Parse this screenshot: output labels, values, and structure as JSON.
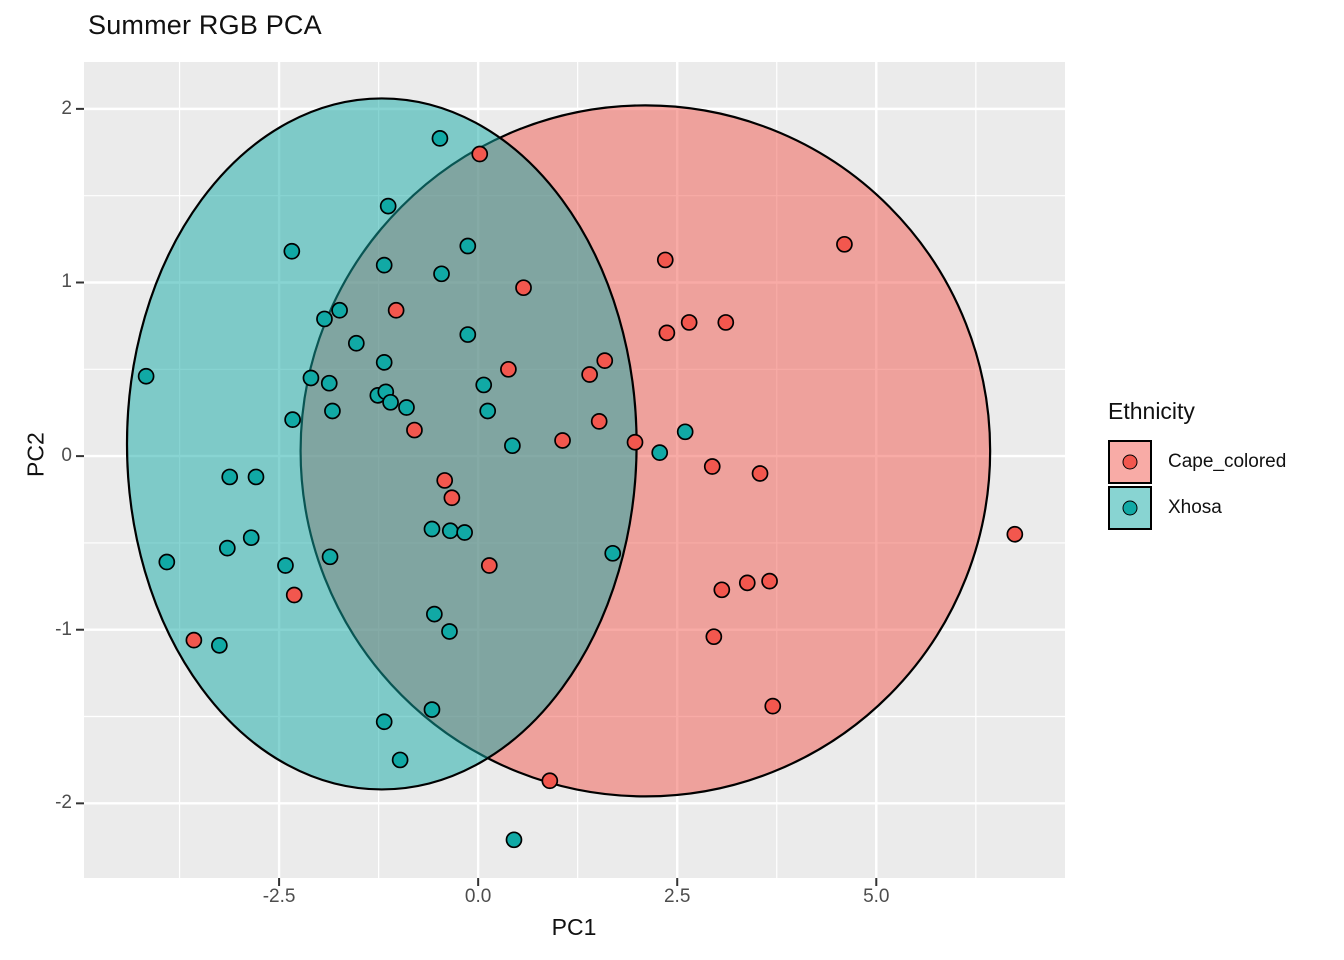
{
  "title": "Summer RGB PCA",
  "axes": {
    "x": {
      "label": "PC1",
      "ticks": [
        -2.5,
        0.0,
        2.5,
        5.0
      ],
      "tick_labels": [
        "-2.5",
        "0.0",
        "2.5",
        "5.0"
      ],
      "minor_ticks": [
        -3.75,
        -1.25,
        1.25,
        3.75,
        6.25
      ]
    },
    "y": {
      "label": "PC2",
      "ticks": [
        2,
        1,
        0,
        -1,
        -2
      ],
      "tick_labels": [
        "2",
        "1",
        "0",
        "-1",
        "-2"
      ],
      "minor_ticks": [
        1.5,
        0.5,
        -0.5,
        -1.5
      ]
    }
  },
  "legend": {
    "title": "Ethnicity",
    "entries": [
      {
        "label": "Cape_colored",
        "color": "#F2574E"
      },
      {
        "label": "Xhosa",
        "color": "#11A9A5"
      }
    ]
  },
  "colors": {
    "panel_background": "#EBEBEB",
    "gridline": "#FFFFFF",
    "point_outline": "#000000",
    "ellipse_outline": "#000000",
    "tick_mark": "#333333",
    "tick_text": "#4D4D4D",
    "text": "#111111"
  },
  "chart_data": {
    "type": "scatter",
    "title": "Summer RGB PCA",
    "xlabel": "PC1",
    "ylabel": "PC2",
    "x_range": [
      -4.95,
      7.37
    ],
    "y_range": [
      -2.43,
      2.27
    ],
    "grid": true,
    "legend_position": "right",
    "series": [
      {
        "name": "Cape_colored",
        "color": "#F2574E",
        "ellipse": {
          "cx": 2.1,
          "cy": 0.03,
          "rx": 4.33,
          "ry": 1.99,
          "fill_opacity": 0.5
        },
        "points": [
          [
            0.02,
            1.74
          ],
          [
            0.57,
            0.97
          ],
          [
            -1.03,
            0.84
          ],
          [
            0.38,
            0.5
          ],
          [
            -0.8,
            0.15
          ],
          [
            2.35,
            1.13
          ],
          [
            4.6,
            1.22
          ],
          [
            2.65,
            0.77
          ],
          [
            3.11,
            0.77
          ],
          [
            2.37,
            0.71
          ],
          [
            1.59,
            0.55
          ],
          [
            1.4,
            0.47
          ],
          [
            1.52,
            0.2
          ],
          [
            1.06,
            0.09
          ],
          [
            1.97,
            0.08
          ],
          [
            -0.42,
            -0.14
          ],
          [
            -0.33,
            -0.24
          ],
          [
            0.14,
            -0.63
          ],
          [
            -2.31,
            -0.8
          ],
          [
            -3.57,
            -1.06
          ],
          [
            2.94,
            -0.06
          ],
          [
            3.54,
            -0.1
          ],
          [
            3.38,
            -0.73
          ],
          [
            3.66,
            -0.72
          ],
          [
            3.06,
            -0.77
          ],
          [
            2.96,
            -1.04
          ],
          [
            3.7,
            -1.44
          ],
          [
            6.74,
            -0.45
          ],
          [
            0.9,
            -1.87
          ]
        ]
      },
      {
        "name": "Xhosa",
        "color": "#11A9A5",
        "ellipse": {
          "cx": -1.21,
          "cy": 0.07,
          "rx": 3.2,
          "ry": 1.99,
          "fill_opacity": 0.5
        },
        "points": [
          [
            -0.48,
            1.83
          ],
          [
            -1.13,
            1.44
          ],
          [
            -2.34,
            1.18
          ],
          [
            -0.13,
            1.21
          ],
          [
            -1.18,
            1.1
          ],
          [
            -0.46,
            1.05
          ],
          [
            -1.74,
            0.84
          ],
          [
            -1.93,
            0.79
          ],
          [
            -0.13,
            0.7
          ],
          [
            -1.53,
            0.65
          ],
          [
            -1.18,
            0.54
          ],
          [
            -4.17,
            0.46
          ],
          [
            -2.1,
            0.45
          ],
          [
            -1.87,
            0.42
          ],
          [
            0.07,
            0.41
          ],
          [
            -1.26,
            0.35
          ],
          [
            -1.16,
            0.37
          ],
          [
            -1.1,
            0.31
          ],
          [
            -0.9,
            0.28
          ],
          [
            -1.83,
            0.26
          ],
          [
            -2.33,
            0.21
          ],
          [
            0.12,
            0.26
          ],
          [
            0.43,
            0.06
          ],
          [
            2.6,
            0.14
          ],
          [
            2.28,
            0.02
          ],
          [
            -3.12,
            -0.12
          ],
          [
            -2.79,
            -0.12
          ],
          [
            -0.58,
            -0.42
          ],
          [
            -0.35,
            -0.43
          ],
          [
            -0.17,
            -0.44
          ],
          [
            -2.85,
            -0.47
          ],
          [
            -3.15,
            -0.53
          ],
          [
            -3.91,
            -0.61
          ],
          [
            -1.86,
            -0.58
          ],
          [
            -2.42,
            -0.63
          ],
          [
            1.69,
            -0.56
          ],
          [
            -3.25,
            -1.09
          ],
          [
            -0.55,
            -0.91
          ],
          [
            -0.36,
            -1.01
          ],
          [
            -0.58,
            -1.46
          ],
          [
            -1.18,
            -1.53
          ],
          [
            -0.98,
            -1.75
          ],
          [
            0.45,
            -2.21
          ]
        ]
      }
    ]
  }
}
